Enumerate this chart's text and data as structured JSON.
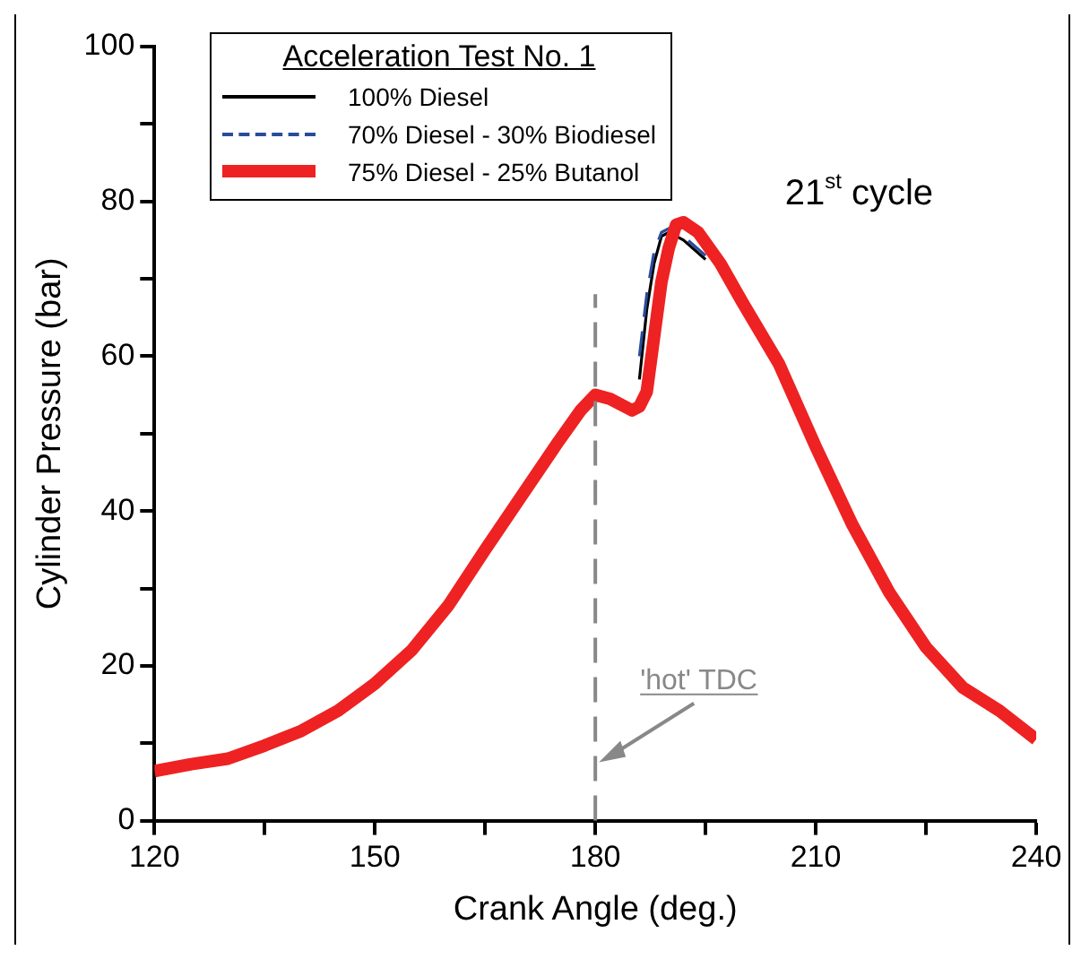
{
  "chart_data": {
    "type": "line",
    "xlabel": "Crank Angle (deg.)",
    "ylabel": "Cylinder Pressure (bar)",
    "legend_title": "Acceleration Test No. 1",
    "legend": "top left",
    "grid": false,
    "marker": "none",
    "xlim": [
      120,
      240
    ],
    "xticks": [
      120,
      {
        "value": 135,
        "label": null
      },
      150,
      {
        "value": 165,
        "label": null
      },
      180,
      {
        "value": 195,
        "label": null
      },
      210,
      {
        "value": 225,
        "label": null
      },
      240
    ],
    "ylim": [
      0,
      100
    ],
    "yticks": [
      0,
      {
        "value": 10,
        "label": null
      },
      20,
      {
        "value": 30,
        "label": null
      },
      40,
      {
        "value": 50,
        "label": null
      },
      60,
      {
        "value": 70,
        "label": null
      },
      80,
      {
        "value": 90,
        "label": null
      },
      100
    ],
    "ref_lines": [
      {
        "axis": "x",
        "value": 180,
        "label": "'hot' TDC",
        "color": "#888888",
        "line_style": "dashed"
      }
    ],
    "annotations": [
      "21$^{st}$ cycle"
    ],
    "series": [
      {
        "name": "100% Diesel",
        "color": "#000000",
        "line_style": "solid",
        "x": [
          186,
          187,
          188,
          189,
          190,
          192,
          195
        ],
        "values": [
          57,
          66,
          72,
          75.5,
          76,
          75,
          72.5
        ]
      },
      {
        "name": "70% Diesel - 30% Biodiesel",
        "color": "#2b4c9b",
        "line_style": "dashed",
        "x": [
          186,
          187,
          188,
          189,
          190,
          192,
          195
        ],
        "values": [
          60,
          68,
          73.5,
          76,
          76.5,
          75.5,
          73
        ]
      },
      {
        "name": "75% Diesel - 25% Butanol",
        "color": "#ee2222",
        "line_style": "solid",
        "x": [
          120,
          125,
          130,
          135,
          140,
          145,
          150,
          155,
          160,
          165,
          170,
          175,
          178,
          180,
          182,
          185,
          186,
          187,
          188,
          189,
          190,
          191,
          192,
          194,
          197,
          200,
          205,
          210,
          215,
          220,
          225,
          230,
          235,
          240
        ],
        "values": [
          6.4,
          7.3,
          8,
          9.7,
          11.6,
          14.2,
          17.7,
          22,
          27.8,
          35,
          42,
          49,
          53,
          55,
          54.5,
          53,
          53.5,
          55.4,
          62.5,
          69.6,
          74,
          77,
          77.3,
          76,
          72,
          67,
          59,
          48.3,
          38.2,
          29.5,
          22.4,
          17.2,
          14.2,
          10.5
        ]
      }
    ]
  }
}
